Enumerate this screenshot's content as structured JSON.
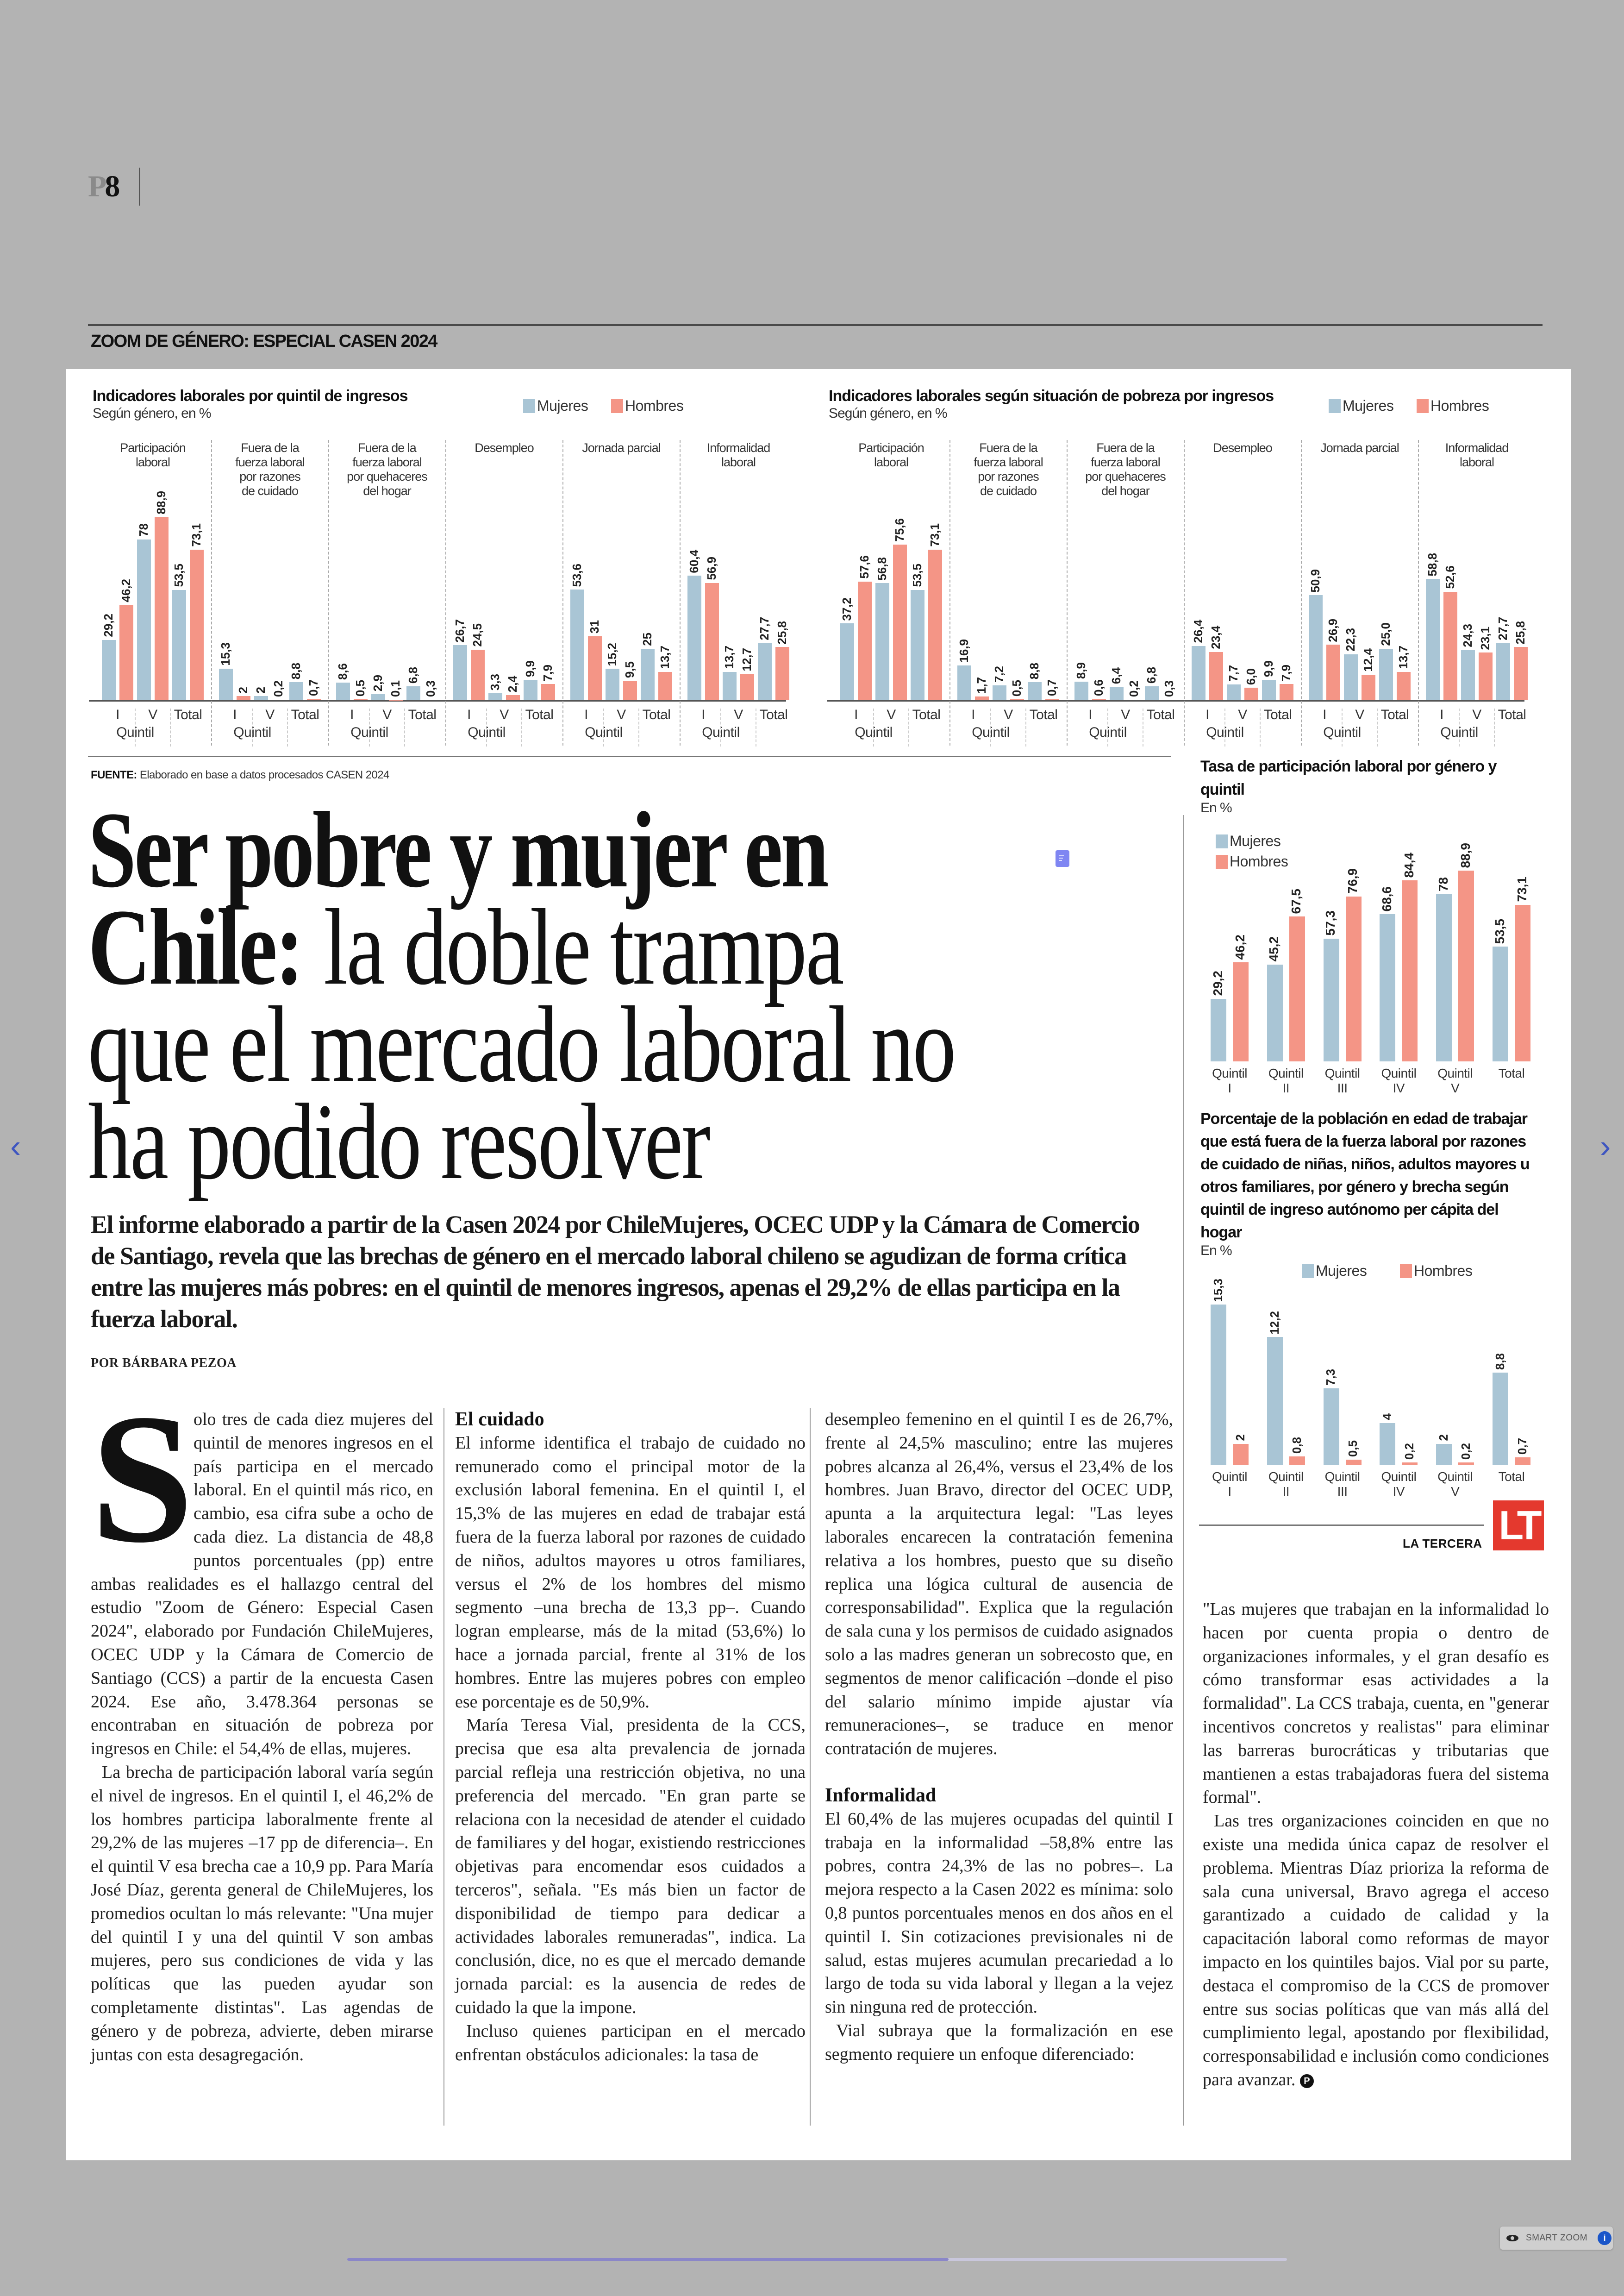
{
  "page_marker": {
    "prefix": "P",
    "number": "8"
  },
  "section": "ZOOM DE GÉNERO: ESPECIAL CASEN 2024",
  "source": {
    "label": "FUENTE:",
    "text": "Elaborado en base a datos procesados CASEN 2024"
  },
  "headline": {
    "bold_lines": [
      "Ser pobre y mujer en",
      "Chile:"
    ],
    "light_lines": [
      "la doble trampa",
      "que el mercado laboral no",
      "ha podido resolver"
    ]
  },
  "lead": "El informe elaborado a partir de la Casen 2024 por ChileMujeres, OCEC UDP y la Cámara de Comercio de Santiago, revela que las brechas de género en el mercado laboral chileno se agudizan de forma crítica entre las mujeres más pobres: en el quintil de menores ingresos, apenas el 29,2% de ellas participa en la fuerza laboral.",
  "byline": "POR BÁRBARA PEZOA",
  "body": {
    "col1": {
      "dropcap": "S",
      "p1": "olo tres de cada diez mujeres del quintil de menores ingresos en el país participa en el mercado laboral. En el quintil más rico, en cambio, esa cifra sube a ocho de cada diez. La distancia de 48,8 puntos porcentuales (pp) entre ambas realidades es el hallazgo central del estudio \"Zoom de Género: Especial Casen 2024\", elaborado por Fundación ChileMujeres, OCEC UDP y la Cámara de Comercio de Santiago (CCS) a partir de la encuesta Casen 2024. Ese año, 3.478.364 personas se encontraban en situación de pobreza por ingresos en Chile: el 54,4% de ellas, mujeres.",
      "p2": "La brecha de participación laboral varía según el nivel de ingresos. En el quintil I, el 46,2% de los hombres participa laboralmente frente al 29,2% de las mujeres –17 pp de diferencia–. En el quintil V esa brecha cae a 10,9 pp. Para María José Díaz, gerenta general de ChileMujeres, los promedios ocultan lo más relevante: \"Una mujer del quintil I y una del quintil V son ambas mujeres, pero sus condiciones de vida y las políticas que las pueden ayudar son completamente distintas\". Las agendas de género y de pobreza, advierte, deben mirarse juntas con esta desagregación."
    },
    "col2": {
      "heading": "El cuidado",
      "p1": "El informe identifica el trabajo de cuidado no remunerado como el principal motor de la exclusión laboral femenina. En el quintil I, el 15,3% de las mujeres en edad de trabajar está fuera de la fuerza laboral por razones de cuidado de niños, adultos mayores u otros familiares, versus el 2% de los hombres del mismo segmento –una brecha de 13,3 pp–. Cuando logran emplearse, más de la mitad (53,6%) lo hace a jornada parcial, frente al 31% de los hombres. Entre las mujeres pobres con empleo ese porcentaje es de 50,9%.",
      "p2": "María Teresa Vial, presidenta de la CCS, precisa que esa alta prevalencia de jornada parcial refleja una restricción objetiva, no una preferencia del mercado. \"En gran parte se relaciona con la necesidad de atender el cuidado de familiares y del hogar, existiendo restricciones objetivas para encomendar esos cuidados a terceros\", señala. \"Es más bien un factor de disponibilidad de tiempo para dedicar a actividades laborales remuneradas\", indica. La conclusión, dice, no es que el mercado demande jornada parcial: es la ausencia de redes de cuidado la que la impone.",
      "p3": "Incluso quienes participan en el mercado enfrentan obstáculos adicionales: la tasa de"
    },
    "col3": {
      "p1": "desempleo femenino en el quintil I es de 26,7%, frente al 24,5% masculino; entre las mujeres pobres alcanza al 26,4%, versus el 23,4% de los hombres. Juan Bravo, director del OCEC UDP, apunta a la arquitectura legal: \"Las leyes laborales encarecen la contratación femenina relativa a los hombres, puesto que su diseño replica una lógica cultural de ausencia de corresponsabilidad\". Explica que la regulación de sala cuna y los permisos de cuidado asignados solo a las madres generan un sobrecosto que, en segmentos de menor calificación –donde el piso del salario mínimo impide ajustar vía remuneraciones–, se traduce en menor contratación de mujeres.",
      "heading": "Informalidad",
      "p2": "El 60,4% de las mujeres ocupadas del quintil I trabaja en la informalidad –58,8% entre las pobres, contra 24,3% de las no pobres–. La mejora respecto a la Casen 2022 es mínima: solo 0,8 puntos porcentuales menos en dos años en el quintil I. Sin cotizaciones previsionales ni de salud, estas mujeres acumulan precariedad a lo largo de toda su vida laboral y llegan a la vejez sin ninguna red de protección.",
      "p3": "Vial subraya que la formalización en ese segmento requiere un enfoque diferenciado:"
    },
    "col4": {
      "p1": "\"Las mujeres que trabajan en la informalidad lo hacen por cuenta propia o dentro de organizaciones informales, y el gran desafío es cómo transformar esas actividades a la formalidad\". La CCS trabaja, cuenta, en \"generar incentivos concretos y realistas\" para eliminar las barreras burocráticas y tributarias que mantienen a estas trabajadoras fuera del sistema formal\".",
      "p2": "Las tres organizaciones coinciden en que no existe una medida única capaz de resolver el problema. Mientras Díaz prioriza la reforma de sala cuna universal, Bravo agrega el acceso garantizado a cuidado de calidad y la capacitación laboral como reformas de mayor impacto en los quintiles bajos. Vial por su parte, destaca el compromiso de la CCS de promover entre sus socias políticas que van más allá del cumplimiento legal, apostando por flexibilidad, corresponsabilidad e inclusión como condiciones para avanzar.",
      "endmark": "P"
    }
  },
  "brand": {
    "name": "LA TERCERA",
    "logo_text": "LT",
    "color": "#e4392e"
  },
  "viewer": {
    "prev_icon": "chevron-left-icon",
    "next_icon": "chevron-right-icon",
    "prev_glyph": "‹",
    "next_glyph": "›",
    "scroll_progress": 0.64,
    "smart_zoom_label": "SMART ZOOM",
    "info_glyph": "i"
  },
  "colors": {
    "mujeres": "#a9c5d5",
    "hombres": "#f49586",
    "background": "#b3b3b3",
    "accent": "#3f56c0"
  },
  "chart_data": [
    {
      "type": "bar",
      "title": "Indicadores laborales por quintil de ingresos",
      "subtitle": "Según género, en %",
      "legend": [
        "Mujeres",
        "Hombres"
      ],
      "legend_placement": "top-right",
      "label_format": "auto",
      "categories": [
        "I",
        "V",
        "Total"
      ],
      "group_label": "Quintil",
      "panels": [
        {
          "title": "Participación\nlaboral",
          "series": [
            {
              "name": "Mujeres",
              "values": [
                29.2,
                78,
                53.5
              ]
            },
            {
              "name": "Hombres",
              "values": [
                46.2,
                88.9,
                73.1
              ]
            }
          ]
        },
        {
          "title": "Fuera de la\nfuerza laboral\npor razones\nde cuidado",
          "series": [
            {
              "name": "Mujeres",
              "values": [
                15.3,
                2,
                8.8
              ]
            },
            {
              "name": "Hombres",
              "values": [
                2,
                0.2,
                0.7
              ]
            }
          ]
        },
        {
          "title": "Fuera de la\nfuerza laboral\npor quehaceres\ndel hogar",
          "series": [
            {
              "name": "Mujeres",
              "values": [
                8.6,
                2.9,
                6.8
              ]
            },
            {
              "name": "Hombres",
              "values": [
                0.5,
                0.1,
                0.3
              ]
            }
          ]
        },
        {
          "title": "Desempleo",
          "series": [
            {
              "name": "Mujeres",
              "values": [
                26.7,
                3.3,
                9.9
              ]
            },
            {
              "name": "Hombres",
              "values": [
                24.5,
                2.4,
                7.9
              ]
            }
          ]
        },
        {
          "title": "Jornada parcial",
          "series": [
            {
              "name": "Mujeres",
              "values": [
                53.6,
                15.2,
                25
              ]
            },
            {
              "name": "Hombres",
              "values": [
                31,
                9.5,
                13.7
              ]
            }
          ]
        },
        {
          "title": "Informalidad\nlaboral",
          "series": [
            {
              "name": "Mujeres",
              "values": [
                60.4,
                13.7,
                27.7
              ]
            },
            {
              "name": "Hombres",
              "values": [
                56.9,
                12.7,
                25.8
              ]
            }
          ]
        }
      ]
    },
    {
      "type": "bar",
      "title": "Indicadores laborales según situación de pobreza por ingresos",
      "subtitle": "Según género, en %",
      "legend": [
        "Mujeres",
        "Hombres"
      ],
      "legend_placement": "top-right",
      "label_format": "fixed1",
      "categories": [
        "I",
        "V",
        "Total"
      ],
      "group_label": "Quintil",
      "panels": [
        {
          "title": "Participación\nlaboral",
          "series": [
            {
              "name": "Mujeres",
              "values": [
                37.2,
                56.8,
                53.5
              ]
            },
            {
              "name": "Hombres",
              "values": [
                57.6,
                75.6,
                73.1
              ]
            }
          ]
        },
        {
          "title": "Fuera de la\nfuerza laboral\npor razones\nde cuidado",
          "series": [
            {
              "name": "Mujeres",
              "values": [
                16.9,
                7.2,
                8.8
              ]
            },
            {
              "name": "Hombres",
              "values": [
                1.7,
                0.5,
                0.7
              ]
            }
          ]
        },
        {
          "title": "Fuera de la\nfuerza laboral\npor quehaceres\ndel hogar",
          "series": [
            {
              "name": "Mujeres",
              "values": [
                8.9,
                6.4,
                6.8
              ]
            },
            {
              "name": "Hombres",
              "values": [
                0.6,
                0.2,
                0.3
              ]
            }
          ]
        },
        {
          "title": "Desempleo",
          "series": [
            {
              "name": "Mujeres",
              "values": [
                26.4,
                7.7,
                9.9
              ]
            },
            {
              "name": "Hombres",
              "values": [
                23.4,
                6.0,
                7.9
              ]
            }
          ]
        },
        {
          "title": "Jornada parcial",
          "series": [
            {
              "name": "Mujeres",
              "values": [
                50.9,
                22.3,
                25.0
              ]
            },
            {
              "name": "Hombres",
              "values": [
                26.9,
                12.4,
                13.7
              ]
            }
          ]
        },
        {
          "title": "Informalidad\nlaboral",
          "series": [
            {
              "name": "Mujeres",
              "values": [
                58.8,
                24.3,
                27.7
              ]
            },
            {
              "name": "Hombres",
              "values": [
                52.6,
                23.1,
                25.8
              ]
            }
          ]
        }
      ]
    },
    {
      "type": "bar",
      "title": "Tasa de participación laboral por género y quintil",
      "subtitle": "En %",
      "legend": [
        "Mujeres",
        "Hombres"
      ],
      "legend_placement": "top-left",
      "label_format": "auto",
      "categories": [
        "Quintil\nI",
        "Quintil\nII",
        "Quintil\nIII",
        "Quintil\nIV",
        "Quintil\nV",
        "Total"
      ],
      "series": [
        {
          "name": "Mujeres",
          "values": [
            29.2,
            45.2,
            57.3,
            68.6,
            78,
            53.5
          ]
        },
        {
          "name": "Hombres",
          "values": [
            46.2,
            67.5,
            76.9,
            84.4,
            88.9,
            73.1
          ]
        }
      ]
    },
    {
      "type": "bar",
      "title": "Porcentaje de la población en edad de trabajar que está fuera de la fuerza laboral por razones de cuidado de niñas, niños, adultos mayores u otros familiares, por género y brecha según quintil de ingreso autónomo per cápita del hogar",
      "subtitle": "En %",
      "legend": [
        "Mujeres",
        "Hombres"
      ],
      "legend_placement": "top",
      "label_format": "auto",
      "categories": [
        "Quintil\nI",
        "Quintil\nII",
        "Quintil\nIII",
        "Quintil\nIV",
        "Quintil\nV",
        "Total"
      ],
      "series": [
        {
          "name": "Mujeres",
          "values": [
            15.3,
            12.2,
            7.3,
            4,
            2,
            8.8
          ]
        },
        {
          "name": "Hombres",
          "values": [
            2,
            0.8,
            0.5,
            0.2,
            0.2,
            0.7
          ]
        }
      ]
    }
  ]
}
